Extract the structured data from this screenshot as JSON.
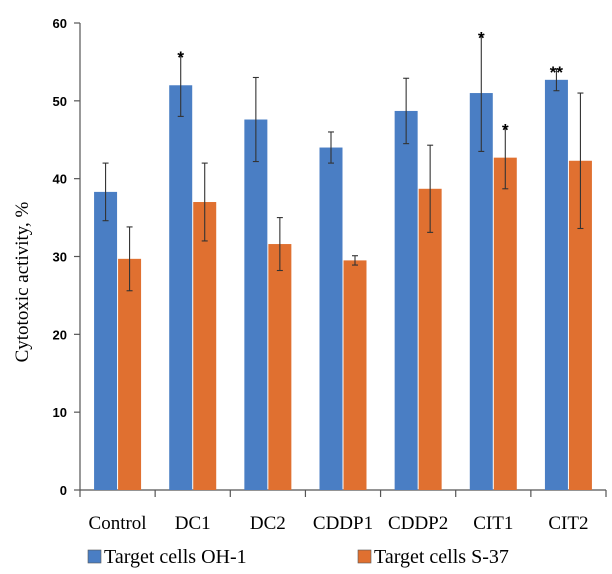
{
  "chart_data": {
    "type": "bar",
    "title": "",
    "xlabel": "",
    "ylabel": "Cytotoxic activity, %",
    "ylim": [
      0,
      60
    ],
    "yticks": [
      0,
      10,
      20,
      30,
      40,
      50,
      60
    ],
    "categories": [
      "Control",
      "DC1",
      "DC2",
      "CDDP1",
      "CDDP2",
      "CIT1",
      "CIT2"
    ],
    "series": [
      {
        "name": "Target cells OH-1",
        "color": "#4a7ec4",
        "values": [
          38.3,
          52.0,
          47.6,
          44.0,
          48.7,
          51.0,
          52.7
        ],
        "error": [
          3.7,
          4.0,
          5.4,
          2.0,
          4.2,
          7.5,
          1.4
        ],
        "annotations": [
          "",
          "*",
          "",
          "",
          "",
          "*",
          "**"
        ]
      },
      {
        "name": "Target cells S-37",
        "color": "#e07030",
        "values": [
          29.7,
          37.0,
          31.6,
          29.5,
          38.7,
          42.7,
          42.3
        ],
        "error": [
          4.1,
          5.0,
          3.4,
          0.6,
          5.6,
          4.0,
          8.7
        ],
        "annotations": [
          "",
          "",
          "",
          "",
          "",
          "*",
          ""
        ]
      }
    ],
    "grid": false,
    "legend_position": "bottom"
  }
}
